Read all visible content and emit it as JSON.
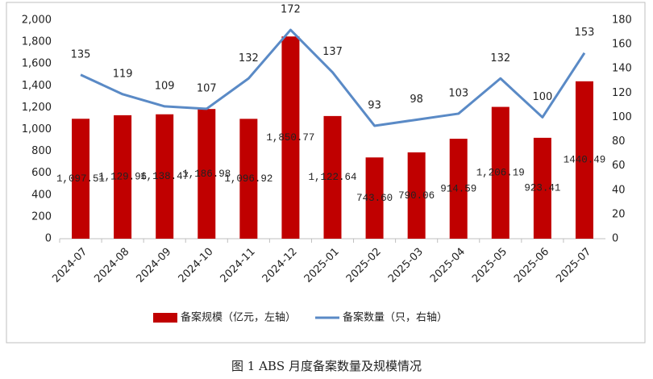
{
  "chart_data": {
    "type": "bar",
    "caption": "图 1   ABS 月度备案数量及规模情况",
    "categories": [
      "2024-07",
      "2024-08",
      "2024-09",
      "2024-10",
      "2024-11",
      "2024-12",
      "2025-01",
      "2025-02",
      "2025-03",
      "2025-04",
      "2025-05",
      "2025-06",
      "2025-07"
    ],
    "series": [
      {
        "name": "备案规模（亿元，左轴）",
        "type": "bar",
        "color": "#c00000",
        "values": [
          1097.51,
          1129.96,
          1138.47,
          1186.98,
          1096.92,
          1850.77,
          1122.64,
          743.6,
          790.06,
          914.59,
          1206.19,
          923.41,
          1440.49
        ],
        "value_labels": [
          "1,097.51",
          "1,129.96",
          "1,138.47",
          "1,186.98",
          "1,096.92",
          "1,850.77",
          "1,122.64",
          "743.60",
          "790.06",
          "914.59",
          "1,206.19",
          "923.41",
          "1440.49"
        ]
      },
      {
        "name": "备案数量（只，右轴）",
        "type": "line",
        "axis": "y2",
        "color": "#5a8ac6",
        "values": [
          135,
          119,
          109,
          107,
          132,
          172,
          137,
          93,
          98,
          103,
          132,
          100,
          153
        ]
      }
    ],
    "ylim": [
      0,
      2000
    ],
    "yticks": [
      0,
      200,
      400,
      600,
      800,
      {
        "value": 1000,
        "label": "1,000"
      },
      {
        "value": 1200,
        "label": "1,200"
      },
      {
        "value": 1400,
        "label": "1,400"
      },
      {
        "value": 1600,
        "label": "1,600"
      },
      {
        "value": 1800,
        "label": "1,800"
      },
      {
        "value": 2000,
        "label": "2,000"
      }
    ],
    "y2lim": [
      0,
      180
    ],
    "y2ticks": [
      0,
      20,
      40,
      60,
      80,
      100,
      120,
      140,
      160,
      180
    ],
    "legend": "bottom"
  }
}
